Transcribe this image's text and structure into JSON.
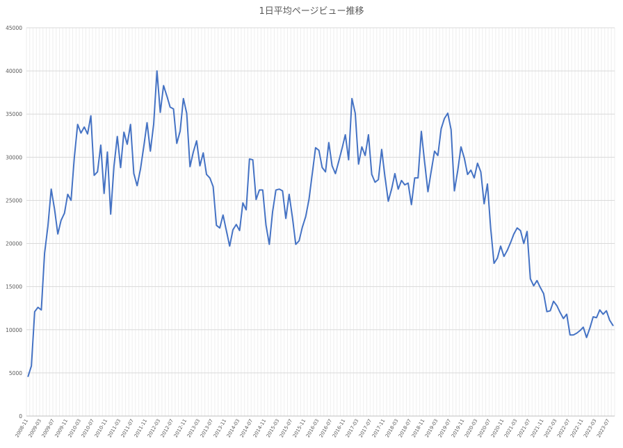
{
  "chart_data": {
    "type": "line",
    "title": "1日平均ページビュー推移",
    "xlabel": "",
    "ylabel": "",
    "ylim": [
      0,
      45000
    ],
    "ytick_step": 5000,
    "grid": true,
    "legend": "none",
    "x_tick_labels": [
      "2008-11",
      "2009-03",
      "2009-07",
      "2009-11",
      "2010-03",
      "2010-07",
      "2010-11",
      "2011-03",
      "2011-07",
      "2011-11",
      "2012-03",
      "2012-07",
      "2012-11",
      "2013-03",
      "2013-07",
      "2013-11",
      "2014-03",
      "2014-07",
      "2014-11",
      "2015-03",
      "2015-07",
      "2015-11",
      "2016-03",
      "2016-07",
      "2016-11",
      "2017-03",
      "2017-07",
      "2017-11",
      "2018-03",
      "2018-07",
      "2018-11",
      "2019-03",
      "2019-07",
      "2019-11",
      "2020-03",
      "2020-07",
      "2020-11",
      "2021-03",
      "2021-07",
      "2021-11",
      "2022-03",
      "2022-07",
      "2022-11",
      "2023-03",
      "2023-07"
    ],
    "series": [
      {
        "color": "#4472c4",
        "start": "2008-11",
        "values": [
          4600,
          5800,
          12100,
          12600,
          12300,
          18900,
          22000,
          26300,
          24000,
          21100,
          22700,
          23500,
          25700,
          25000,
          30000,
          33800,
          32800,
          33500,
          32700,
          34800,
          27900,
          28300,
          31400,
          25800,
          30600,
          23400,
          29000,
          32400,
          28800,
          32900,
          31500,
          33800,
          28100,
          26700,
          28600,
          31200,
          34000,
          30700,
          33800,
          40000,
          35200,
          38300,
          37100,
          35800,
          35600,
          31600,
          33000,
          36800,
          35100,
          28900,
          30600,
          31900,
          29000,
          30500,
          28000,
          27600,
          26600,
          22100,
          21800,
          23300,
          21500,
          19700,
          21600,
          22200,
          21500,
          24700,
          23900,
          29800,
          29700,
          25100,
          26200,
          26200,
          22100,
          19900,
          23700,
          26200,
          26300,
          26100,
          22900,
          25700,
          23000,
          19900,
          20300,
          21900,
          23100,
          25100,
          28100,
          31100,
          30800,
          28800,
          28300,
          31700,
          29000,
          28100,
          29500,
          31000,
          32600,
          29700,
          36800,
          35100,
          29200,
          31200,
          30200,
          32600,
          28000,
          27100,
          27400,
          30900,
          27700,
          24900,
          26300,
          28100,
          26300,
          27300,
          26800,
          27000,
          24500,
          27600,
          27600,
          33000,
          29400,
          26000,
          28400,
          30700,
          30200,
          33300,
          34500,
          35100,
          33200,
          26100,
          28400,
          31200,
          29900,
          28000,
          28500,
          27600,
          29300,
          28300,
          24600,
          26900,
          21700,
          17700,
          18300,
          19700,
          18500,
          19200,
          20100,
          21100,
          21800,
          21500,
          20000,
          21400,
          15900,
          15100,
          15700,
          14900,
          14200,
          12100,
          12200,
          13300,
          12800,
          12000,
          11300,
          11800,
          9400,
          9400,
          9600,
          9900,
          10300,
          9100,
          10200,
          11500,
          11400,
          12300,
          11800,
          12200,
          11100,
          10500
        ]
      }
    ]
  }
}
